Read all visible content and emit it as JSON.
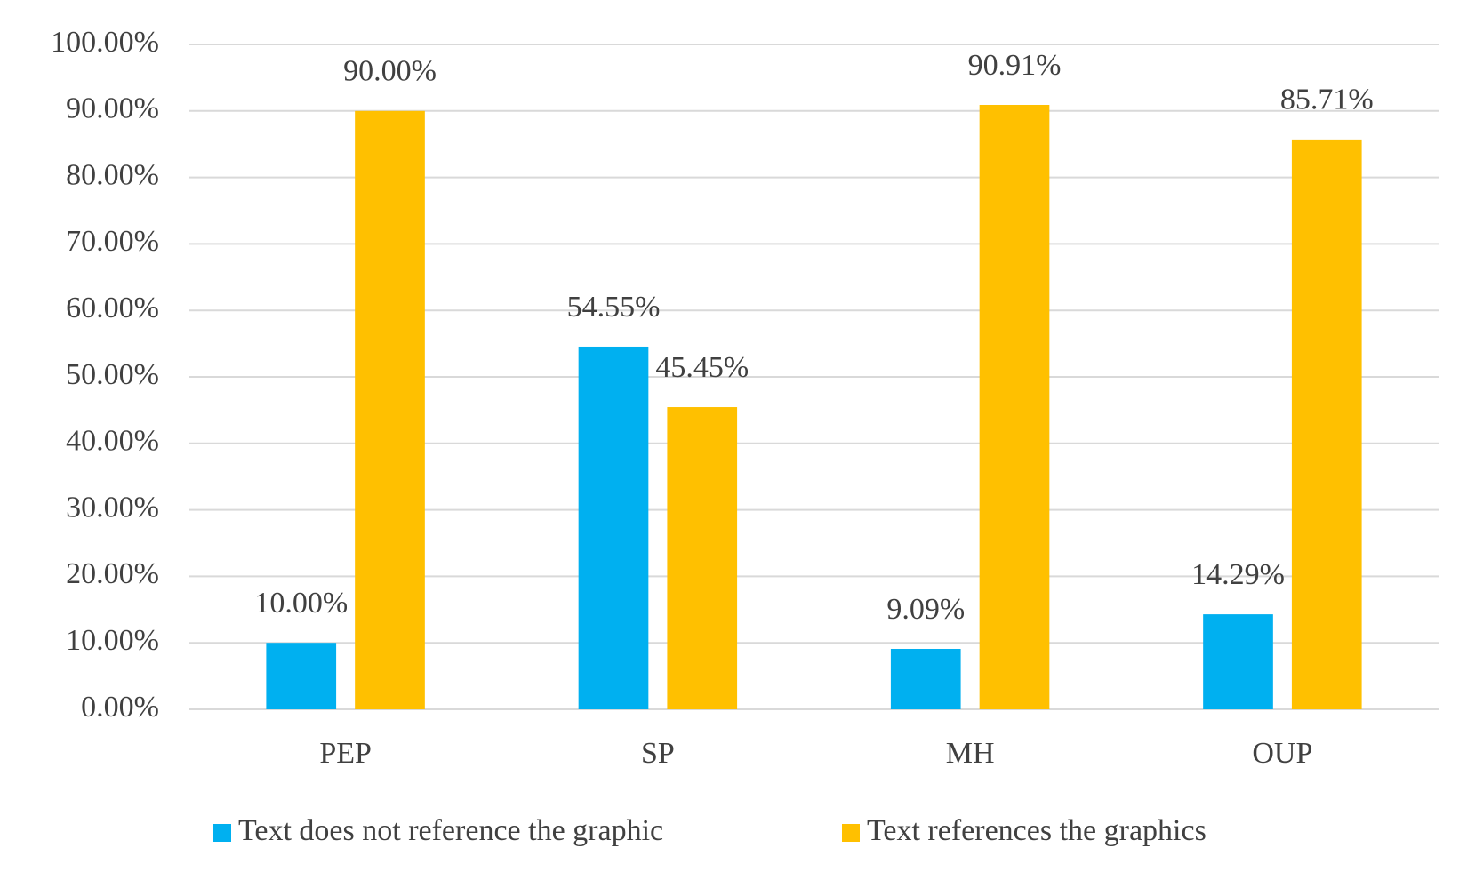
{
  "chart_data": {
    "type": "bar",
    "categories": [
      "PEP",
      "SP",
      "MH",
      "OUP"
    ],
    "series": [
      {
        "name": "Text does not reference the graphic",
        "color": "#00b0f0",
        "values": [
          10.0,
          54.55,
          9.09,
          14.29
        ],
        "value_labels": [
          "10.00%",
          "54.55%",
          "9.09%",
          "14.29%"
        ]
      },
      {
        "name": "Text references the graphics",
        "color": "#ffc000",
        "values": [
          90.0,
          45.45,
          90.91,
          85.71
        ],
        "value_labels": [
          "90.00%",
          "45.45%",
          "90.91%",
          "85.71%"
        ]
      }
    ],
    "ylim": [
      0,
      100
    ],
    "yticks": [
      {
        "value": 0,
        "label": "0.00%"
      },
      {
        "value": 10,
        "label": "10.00%"
      },
      {
        "value": 20,
        "label": "20.00%"
      },
      {
        "value": 30,
        "label": "30.00%"
      },
      {
        "value": 40,
        "label": "40.00%"
      },
      {
        "value": 50,
        "label": "50.00%"
      },
      {
        "value": 60,
        "label": "60.00%"
      },
      {
        "value": 70,
        "label": "70.00%"
      },
      {
        "value": 80,
        "label": "80.00%"
      },
      {
        "value": 90,
        "label": "90.00%"
      },
      {
        "value": 100,
        "label": "100.00%"
      }
    ],
    "grid": true,
    "legend": "bottom"
  }
}
